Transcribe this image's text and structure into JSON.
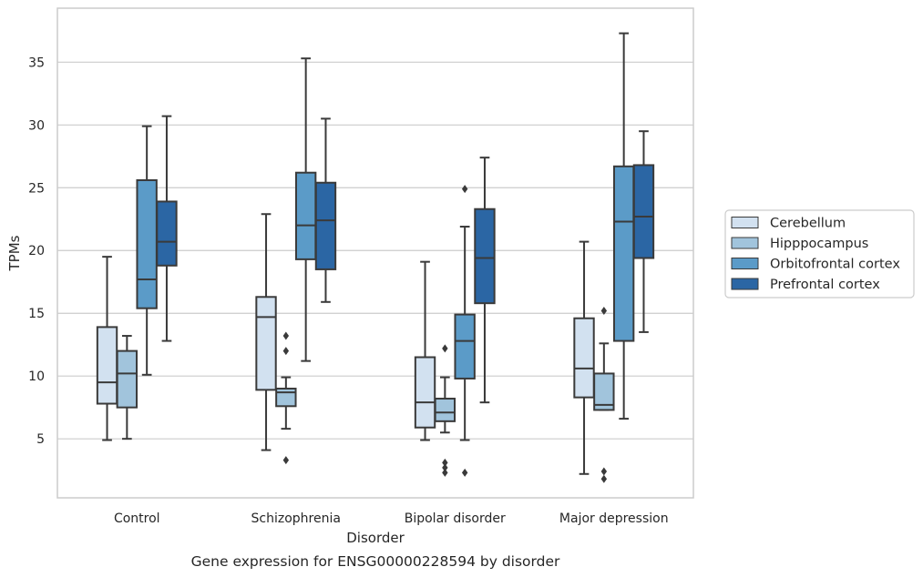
{
  "chart_data": {
    "type": "box",
    "title": "",
    "caption": "Gene expression for ENSG00000228594 by disorder",
    "xlabel": "Disorder",
    "ylabel": "TPMs",
    "ylim": [
      0.3,
      39.3
    ],
    "yticks": [
      5,
      10,
      15,
      20,
      25,
      30,
      35
    ],
    "grid": "horizontal",
    "legend_position": "right",
    "categories": [
      "Control",
      "Schizophrenia",
      "Bipolar disorder",
      "Major depression"
    ],
    "series": [
      {
        "name": "Cerebellum",
        "color": "#d2e1f0",
        "boxes": [
          {
            "whislo": 4.9,
            "q1": 7.8,
            "med": 9.5,
            "q3": 13.9,
            "whishi": 19.5,
            "fliers": []
          },
          {
            "whislo": 4.1,
            "q1": 8.9,
            "med": 14.7,
            "q3": 16.3,
            "whishi": 22.9,
            "fliers": []
          },
          {
            "whislo": 4.9,
            "q1": 5.9,
            "med": 7.9,
            "q3": 11.5,
            "whishi": 19.1,
            "fliers": []
          },
          {
            "whislo": 2.2,
            "q1": 8.3,
            "med": 10.6,
            "q3": 14.6,
            "whishi": 20.7,
            "fliers": []
          }
        ]
      },
      {
        "name": "Hipppocampus",
        "color": "#a1c4dc",
        "boxes": [
          {
            "whislo": 5.0,
            "q1": 7.5,
            "med": 10.2,
            "q3": 12.0,
            "whishi": 13.2,
            "fliers": []
          },
          {
            "whislo": 5.8,
            "q1": 7.6,
            "med": 8.7,
            "q3": 9.0,
            "whishi": 9.9,
            "fliers": [
              3.3,
              12.0,
              13.2
            ]
          },
          {
            "whislo": 5.5,
            "q1": 6.4,
            "med": 7.1,
            "q3": 8.2,
            "whishi": 9.9,
            "fliers": [
              2.3,
              2.7,
              3.1,
              12.2
            ]
          },
          {
            "whislo": 7.3,
            "q1": 7.3,
            "med": 7.7,
            "q3": 10.2,
            "whishi": 12.6,
            "fliers": [
              1.8,
              2.4,
              15.2
            ]
          }
        ]
      },
      {
        "name": "Orbitofrontal cortex",
        "color": "#5b9bc8",
        "boxes": [
          {
            "whislo": 10.1,
            "q1": 15.4,
            "med": 17.7,
            "q3": 25.6,
            "whishi": 29.9,
            "fliers": []
          },
          {
            "whislo": 11.2,
            "q1": 19.3,
            "med": 22.0,
            "q3": 26.2,
            "whishi": 35.3,
            "fliers": []
          },
          {
            "whislo": 4.9,
            "q1": 9.8,
            "med": 12.8,
            "q3": 14.9,
            "whishi": 21.9,
            "fliers": [
              2.3,
              24.9
            ]
          },
          {
            "whislo": 6.6,
            "q1": 12.8,
            "med": 22.3,
            "q3": 26.7,
            "whishi": 37.3,
            "fliers": []
          }
        ]
      },
      {
        "name": "Prefrontal cortex",
        "color": "#2b66a4",
        "boxes": [
          {
            "whislo": 12.8,
            "q1": 18.8,
            "med": 20.7,
            "q3": 23.9,
            "whishi": 30.7,
            "fliers": []
          },
          {
            "whislo": 15.9,
            "q1": 18.5,
            "med": 22.4,
            "q3": 25.4,
            "whishi": 30.5,
            "fliers": []
          },
          {
            "whislo": 7.9,
            "q1": 15.8,
            "med": 19.4,
            "q3": 23.3,
            "whishi": 27.4,
            "fliers": []
          },
          {
            "whislo": 13.5,
            "q1": 19.4,
            "med": 22.7,
            "q3": 26.8,
            "whishi": 29.5,
            "fliers": []
          }
        ]
      }
    ]
  }
}
